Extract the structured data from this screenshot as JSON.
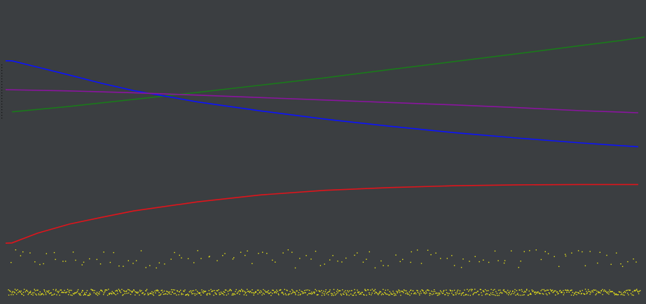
{
  "chart_data": {
    "type": "line",
    "title": "",
    "xlabel": "",
    "ylabel": "",
    "grid": false,
    "legend": "none",
    "background": "#3b3e41",
    "x_range": [
      0,
      100
    ],
    "y_range": [
      0,
      100
    ],
    "series": [
      {
        "color": "#1a7a1a",
        "kind": "line",
        "points": [
          [
            1,
            63.2
          ],
          [
            10,
            65.0
          ],
          [
            20,
            67.3
          ],
          [
            30,
            69.6
          ],
          [
            40,
            72.0
          ],
          [
            50,
            74.4
          ],
          [
            60,
            77.1
          ],
          [
            70,
            79.7
          ],
          [
            80,
            82.3
          ],
          [
            90,
            85.0
          ],
          [
            96,
            86.6
          ],
          [
            100,
            87.8
          ]
        ]
      },
      {
        "color": "#0b12ff",
        "kind": "line",
        "points": [
          [
            0,
            80.0
          ],
          [
            1,
            80.0
          ],
          [
            5,
            77.9
          ],
          [
            10,
            75.3
          ],
          [
            15,
            72.6
          ],
          [
            20,
            70.2
          ],
          [
            30,
            66.5
          ],
          [
            40,
            63.5
          ],
          [
            50,
            60.8
          ],
          [
            60,
            58.5
          ],
          [
            70,
            56.4
          ],
          [
            80,
            54.6
          ],
          [
            90,
            53.0
          ],
          [
            99,
            51.7
          ]
        ]
      },
      {
        "color": "#8b14a0",
        "kind": "line",
        "points": [
          [
            0,
            70.5
          ],
          [
            10,
            70.1
          ],
          [
            20,
            69.5
          ],
          [
            30,
            68.7
          ],
          [
            40,
            67.9
          ],
          [
            50,
            67.1
          ],
          [
            60,
            66.3
          ],
          [
            70,
            65.5
          ],
          [
            80,
            64.6
          ],
          [
            90,
            63.6
          ],
          [
            99,
            62.9
          ]
        ]
      },
      {
        "color": "#e0141b",
        "kind": "line",
        "points": [
          [
            0,
            20.0
          ],
          [
            1,
            20.1
          ],
          [
            5,
            23.3
          ],
          [
            10,
            26.3
          ],
          [
            15,
            28.5
          ],
          [
            20,
            30.6
          ],
          [
            30,
            33.6
          ],
          [
            40,
            35.9
          ],
          [
            50,
            37.4
          ],
          [
            60,
            38.3
          ],
          [
            70,
            38.9
          ],
          [
            80,
            39.2
          ],
          [
            90,
            39.3
          ],
          [
            99,
            39.3
          ]
        ]
      },
      {
        "color": "#e6e21a",
        "kind": "scatter_band",
        "center": 15.0,
        "spread": 3.0,
        "count": 135
      },
      {
        "color": "#e6e21a",
        "kind": "scatter_band",
        "center": 4.0,
        "spread": 1.0,
        "count": 900
      }
    ]
  }
}
